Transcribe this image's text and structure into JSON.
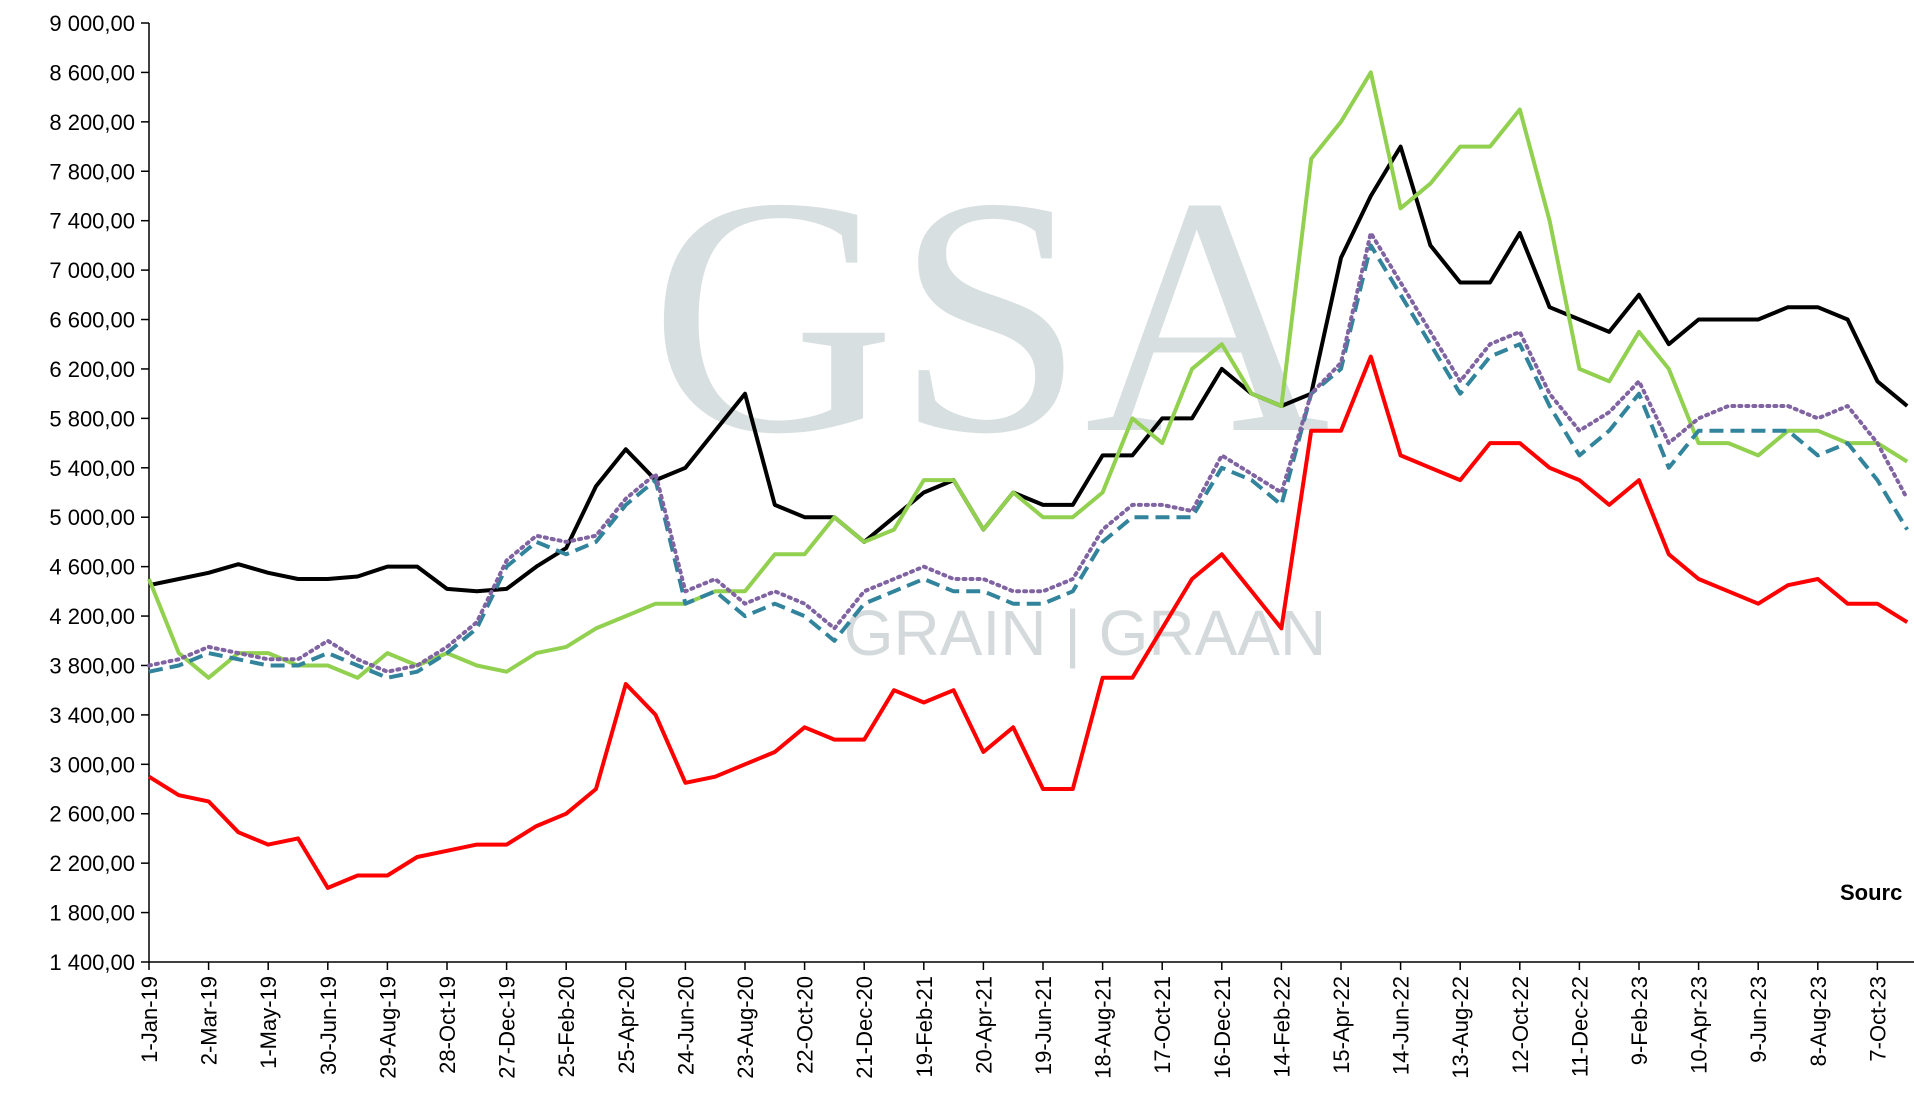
{
  "chart_data": {
    "type": "line",
    "watermark": {
      "logo": "GSA",
      "text": "GRAIN | GRAAN"
    },
    "annotation": "Sourc",
    "categories": [
      "1-Jan-19",
      null,
      "2-Mar-19",
      null,
      "1-May-19",
      null,
      "30-Jun-19",
      null,
      "29-Aug-19",
      null,
      "28-Oct-19",
      null,
      "27-Dec-19",
      null,
      "25-Feb-20",
      null,
      "25-Apr-20",
      null,
      "24-Jun-20",
      null,
      "23-Aug-20",
      null,
      "22-Oct-20",
      null,
      "21-Dec-20",
      null,
      "19-Feb-21",
      null,
      "20-Apr-21",
      null,
      "19-Jun-21",
      null,
      "18-Aug-21",
      null,
      "17-Oct-21",
      null,
      "16-Dec-21",
      null,
      "14-Feb-22",
      null,
      "15-Apr-22",
      null,
      "14-Jun-22",
      null,
      "13-Aug-22",
      null,
      "12-Oct-22",
      null,
      "11-Dec-22",
      null,
      "9-Feb-23",
      null,
      "10-Apr-23",
      null,
      "9-Jun-23",
      null,
      "8-Aug-23",
      null,
      "7-Oct-23",
      null
    ],
    "series": [
      {
        "color": "#000000",
        "dash": "none",
        "values": [
          4450,
          4500,
          4550,
          4620,
          4550,
          4500,
          4500,
          4520,
          4600,
          4600,
          4420,
          4400,
          4420,
          4600,
          4750,
          5250,
          5550,
          5300,
          5400,
          5700,
          6000,
          5100,
          5000,
          5000,
          4800,
          5000,
          5200,
          5300,
          4900,
          5200,
          5100,
          5100,
          5500,
          5500,
          5800,
          5800,
          6200,
          6000,
          5900,
          6000,
          7100,
          7600,
          8000,
          7200,
          6900,
          6900,
          7300,
          6700,
          6600,
          6500,
          6800,
          6400,
          6600,
          6600,
          6600,
          6700,
          6700,
          6600,
          6100,
          5900
        ]
      },
      {
        "color": "#92d050",
        "dash": "none",
        "values": [
          4500,
          3900,
          3700,
          3900,
          3900,
          3800,
          3800,
          3700,
          3900,
          3800,
          3900,
          3800,
          3750,
          3900,
          3950,
          4100,
          4200,
          4300,
          4300,
          4400,
          4400,
          4700,
          4700,
          5000,
          4800,
          4900,
          5300,
          5300,
          4900,
          5200,
          5000,
          5000,
          5200,
          5800,
          5600,
          6200,
          6400,
          6000,
          5900,
          7900,
          8200,
          8600,
          7500,
          7700,
          8000,
          8000,
          8300,
          7400,
          6200,
          6100,
          6500,
          6200,
          5600,
          5600,
          5500,
          5700,
          5700,
          5600,
          5600,
          5450
        ]
      },
      {
        "color": "#ff0000",
        "dash": "none",
        "values": [
          2900,
          2750,
          2700,
          2450,
          2350,
          2400,
          2000,
          2100,
          2100,
          2250,
          2300,
          2350,
          2350,
          2500,
          2600,
          2800,
          3650,
          3400,
          2850,
          2900,
          3000,
          3100,
          3300,
          3200,
          3200,
          3600,
          3500,
          3600,
          3100,
          3300,
          2800,
          2800,
          3700,
          3700,
          4100,
          4500,
          4700,
          4400,
          4100,
          5700,
          5700,
          6300,
          5500,
          5400,
          5300,
          5600,
          5600,
          5400,
          5300,
          5100,
          5300,
          4700,
          4500,
          4400,
          4300,
          4450,
          4500,
          4300,
          4300,
          4150
        ]
      },
      {
        "color": "#31849b",
        "dash": "14 7",
        "values": [
          3750,
          3800,
          3900,
          3850,
          3800,
          3800,
          3900,
          3800,
          3700,
          3750,
          3900,
          4100,
          4600,
          4800,
          4700,
          4800,
          5100,
          5300,
          4300,
          4400,
          4200,
          4300,
          4200,
          4000,
          4300,
          4400,
          4500,
          4400,
          4400,
          4300,
          4300,
          4400,
          4800,
          5000,
          5000,
          5000,
          5400,
          5300,
          5100,
          6000,
          6200,
          7200,
          6800,
          6400,
          6000,
          6300,
          6400,
          5900,
          5500,
          5700,
          6000,
          5400,
          5700,
          5700,
          5700,
          5700,
          5500,
          5600,
          5300,
          4900
        ]
      },
      {
        "color": "#8064a2",
        "dash": "2 5",
        "values": [
          3800,
          3850,
          3950,
          3900,
          3850,
          3850,
          4000,
          3850,
          3750,
          3800,
          3950,
          4150,
          4650,
          4850,
          4800,
          4850,
          5150,
          5350,
          4400,
          4500,
          4300,
          4400,
          4300,
          4100,
          4400,
          4500,
          4600,
          4500,
          4500,
          4400,
          4400,
          4500,
          4900,
          5100,
          5100,
          5050,
          5500,
          5350,
          5200,
          6000,
          6250,
          7300,
          6900,
          6500,
          6100,
          6400,
          6500,
          6000,
          5700,
          5850,
          6100,
          5600,
          5800,
          5900,
          5900,
          5900,
          5800,
          5900,
          5600,
          5150
        ]
      }
    ],
    "ylim": [
      1400,
      9000
    ],
    "yticks": [
      {
        "value": 1400,
        "label": "1 400,00"
      },
      {
        "value": 1800,
        "label": "1 800,00"
      },
      {
        "value": 2200,
        "label": "2 200,00"
      },
      {
        "value": 2600,
        "label": "2 600,00"
      },
      {
        "value": 3000,
        "label": "3 000,00"
      },
      {
        "value": 3400,
        "label": "3 400,00"
      },
      {
        "value": 3800,
        "label": "3 800,00"
      },
      {
        "value": 4200,
        "label": "4 200,00"
      },
      {
        "value": 4600,
        "label": "4 600,00"
      },
      {
        "value": 5000,
        "label": "5 000,00"
      },
      {
        "value": 5400,
        "label": "5 400,00"
      },
      {
        "value": 5800,
        "label": "5 800,00"
      },
      {
        "value": 6200,
        "label": "6 200,00"
      },
      {
        "value": 6600,
        "label": "6 600,00"
      },
      {
        "value": 7000,
        "label": "7 000,00"
      },
      {
        "value": 7400,
        "label": "7 400,00"
      },
      {
        "value": 7800,
        "label": "7 800,00"
      },
      {
        "value": 8200,
        "label": "8 200,00"
      },
      {
        "value": 8600,
        "label": "8 600,00"
      },
      {
        "value": 9000,
        "label": "9 000,00"
      }
    ],
    "grid": false
  }
}
